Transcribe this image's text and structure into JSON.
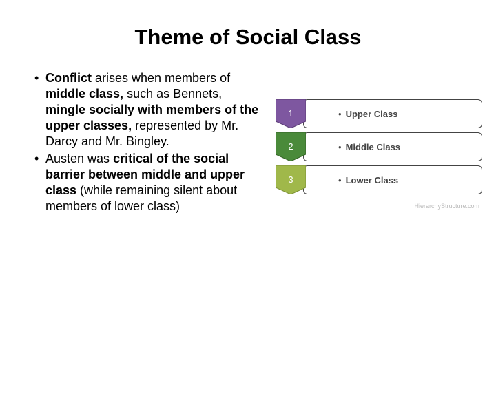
{
  "title": "Theme of Social Class",
  "bullets": [
    {
      "html": "<b>Conflict</b> arises when members of <b>middle class,</b> such as Bennets, <b>mingle socially with members of the upper classes,</b> represented by Mr. Darcy and Mr. Bingley."
    },
    {
      "html": "Austen was <b>critical of the social barrier between middle and upper class</b> (while remaining silent about members of lower class)"
    }
  ],
  "hierarchy": {
    "rows": [
      {
        "num": "1",
        "label": "Upper Class",
        "tab_fill": "#7e57a0",
        "tab_stroke": "#5a3d74",
        "box_border": "#333333"
      },
      {
        "num": "2",
        "label": "Middle Class",
        "tab_fill": "#4a8a3a",
        "tab_stroke": "#356328",
        "box_border": "#333333"
      },
      {
        "num": "3",
        "label": "Lower Class",
        "tab_fill": "#a0b84a",
        "tab_stroke": "#7d9136",
        "box_border": "#333333"
      }
    ],
    "attribution": "HierarchyStructure.com"
  },
  "style": {
    "background": "#ffffff",
    "title_fontsize": 31,
    "body_fontsize": 18,
    "hier_fontsize": 13
  }
}
